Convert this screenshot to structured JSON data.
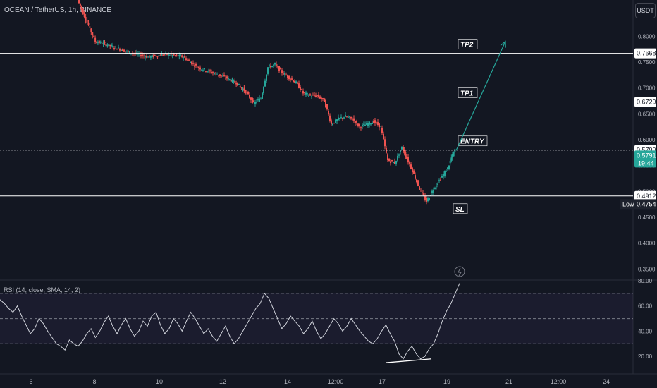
{
  "header": {
    "symbol_title": "OCEAN / TetherUS, 1h, BINANCE",
    "currency_button": "USDT",
    "rsi_title": "RSI (14, close, SMA, 14, 2)"
  },
  "colors": {
    "background": "#131722",
    "up": "#26a69a",
    "down": "#ef5350",
    "level_line": "#ffffff",
    "arrow": "#26a69a",
    "rsi_line": "#d1d4dc",
    "grid": "#2a2e39"
  },
  "chart_data": {
    "type": "candlestick",
    "y_range": [
      0.33,
      0.87
    ],
    "price_ticks": [
      "0.8000",
      "0.7500",
      "0.7000",
      "0.6500",
      "0.6000",
      "0.5500",
      "0.5000",
      "0.4500",
      "0.4000",
      "0.3500"
    ],
    "x_ticks": [
      "6",
      "8",
      "10",
      "12",
      "14",
      "12:00",
      "17",
      "19",
      "21",
      "12:00",
      "24"
    ],
    "levels": [
      {
        "label": "TP2",
        "value": "0.7668"
      },
      {
        "label": "TP1",
        "value": "0.6729"
      },
      {
        "label": "ENTRY",
        "value": "0.5799"
      },
      {
        "label": "SL",
        "value": "0.4912"
      }
    ],
    "current_price": {
      "value": "0.5791",
      "countdown": "19:44"
    },
    "low": {
      "label": "Low",
      "value": "0.4754"
    },
    "price_path": [
      [
        0,
        0.87
      ],
      [
        5,
        0.79
      ],
      [
        10,
        0.78
      ],
      [
        14,
        0.77
      ],
      [
        20,
        0.76
      ],
      [
        25,
        0.765
      ],
      [
        30,
        0.76
      ],
      [
        34,
        0.74
      ],
      [
        38,
        0.73
      ],
      [
        42,
        0.72
      ],
      [
        45,
        0.71
      ],
      [
        48,
        0.69
      ],
      [
        50,
        0.67
      ],
      [
        52,
        0.68
      ],
      [
        54,
        0.74
      ],
      [
        56,
        0.745
      ],
      [
        58,
        0.73
      ],
      [
        60,
        0.72
      ],
      [
        62,
        0.71
      ],
      [
        64,
        0.69
      ],
      [
        66,
        0.685
      ],
      [
        68,
        0.685
      ],
      [
        70,
        0.675
      ],
      [
        72,
        0.63
      ],
      [
        74,
        0.64
      ],
      [
        76,
        0.645
      ],
      [
        78,
        0.64
      ],
      [
        80,
        0.625
      ],
      [
        82,
        0.63
      ],
      [
        84,
        0.635
      ],
      [
        86,
        0.625
      ],
      [
        88,
        0.56
      ],
      [
        90,
        0.555
      ],
      [
        92,
        0.585
      ],
      [
        93,
        0.57
      ],
      [
        95,
        0.54
      ],
      [
        97,
        0.505
      ],
      [
        99,
        0.48
      ],
      [
        101,
        0.505
      ],
      [
        103,
        0.525
      ],
      [
        105,
        0.545
      ],
      [
        106,
        0.565
      ],
      [
        107,
        0.58
      ]
    ],
    "arrow": {
      "from": [
        107,
        0.579
      ],
      "to": [
        121,
        0.79
      ]
    },
    "rsi": {
      "y_range": [
        10,
        80
      ],
      "ticks": [
        "80.00",
        "60.00",
        "40.00",
        "20.00"
      ],
      "bands": [
        70,
        50,
        30
      ],
      "values": [
        65,
        62,
        58,
        55,
        60,
        52,
        45,
        38,
        42,
        50,
        46,
        40,
        35,
        30,
        28,
        25,
        33,
        30,
        28,
        32,
        38,
        42,
        35,
        40,
        47,
        52,
        44,
        38,
        45,
        50,
        42,
        36,
        40,
        48,
        44,
        52,
        55,
        45,
        38,
        42,
        50,
        46,
        40,
        48,
        55,
        50,
        44,
        38,
        42,
        36,
        32,
        38,
        44,
        36,
        30,
        34,
        40,
        46,
        52,
        58,
        62,
        70,
        66,
        58,
        50,
        42,
        46,
        52,
        48,
        44,
        38,
        42,
        48,
        40,
        34,
        38,
        44,
        50,
        46,
        40,
        44,
        50,
        45,
        40,
        36,
        32,
        30,
        34,
        40,
        45,
        38,
        32,
        22,
        18,
        24,
        28,
        22,
        18,
        20,
        26,
        30,
        38,
        48,
        56,
        62,
        70,
        78
      ]
    }
  }
}
